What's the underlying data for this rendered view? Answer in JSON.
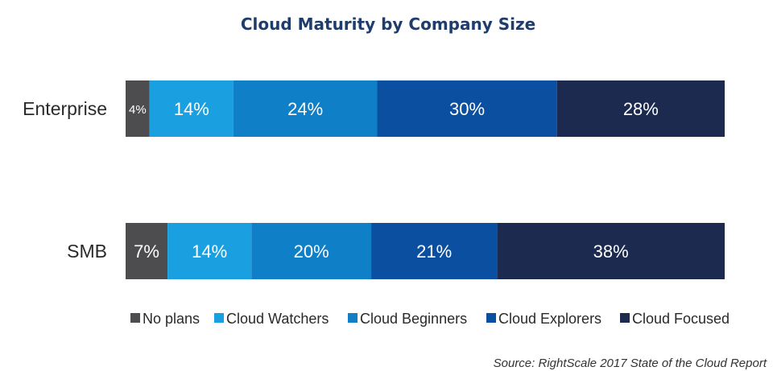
{
  "chart_data": {
    "type": "bar",
    "orientation": "horizontal",
    "stacked": true,
    "title": "Cloud Maturity by Company Size",
    "categories": [
      "Enterprise",
      "SMB"
    ],
    "series": [
      {
        "name": "No plans",
        "color": "#4d4d4f",
        "values": [
          4,
          7
        ],
        "labels": [
          "4%",
          "7%"
        ]
      },
      {
        "name": "Cloud Watchers",
        "color": "#1aa0e0",
        "values": [
          14,
          14
        ],
        "labels": [
          "14%",
          "14%"
        ]
      },
      {
        "name": "Cloud Beginners",
        "color": "#0f7fc8",
        "values": [
          24,
          20
        ],
        "labels": [
          "24%",
          "20%"
        ]
      },
      {
        "name": "Cloud Explorers",
        "color": "#0b4fa0",
        "values": [
          30,
          21
        ],
        "labels": [
          "30%",
          "21%"
        ]
      },
      {
        "name": "Cloud Focused",
        "color": "#1b2a4e",
        "values": [
          28,
          38
        ],
        "labels": [
          "28%",
          "38%"
        ]
      }
    ],
    "legend_position": "bottom",
    "grid": false,
    "source": "Source: RightScale 2017 State of the Cloud Report"
  }
}
